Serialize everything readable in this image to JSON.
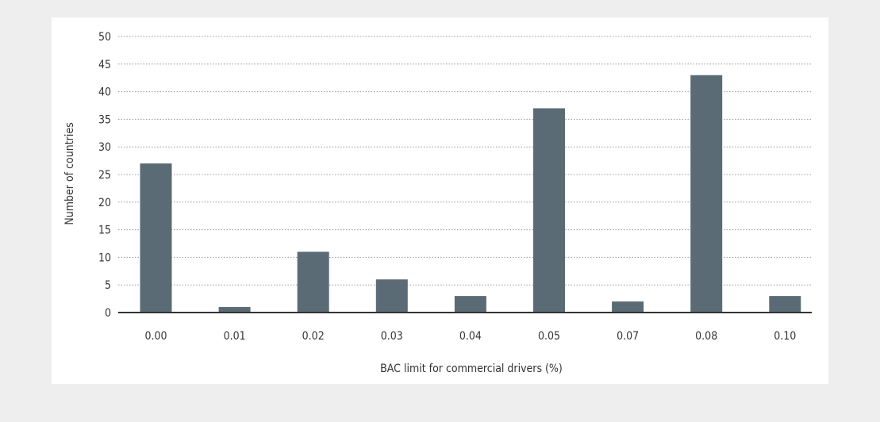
{
  "chart_data": {
    "type": "bar",
    "title": "",
    "xlabel": "BAC limit for commercial drivers (%)",
    "ylabel": "Number of countries",
    "categories": [
      "0.00",
      "0.01",
      "0.02",
      "0.03",
      "0.04",
      "0.05",
      "0.07",
      "0.08",
      "0.10"
    ],
    "values": [
      27,
      1,
      11,
      6,
      3,
      37,
      2,
      43,
      3
    ],
    "ylim": [
      0,
      50
    ],
    "yticks": [
      0,
      5,
      10,
      15,
      20,
      25,
      30,
      35,
      40,
      45,
      50
    ],
    "grid": true,
    "legend": "none",
    "bar_color": "#5b6b76",
    "grid_color": "#9a9a9a",
    "axis_color": "#333333"
  }
}
